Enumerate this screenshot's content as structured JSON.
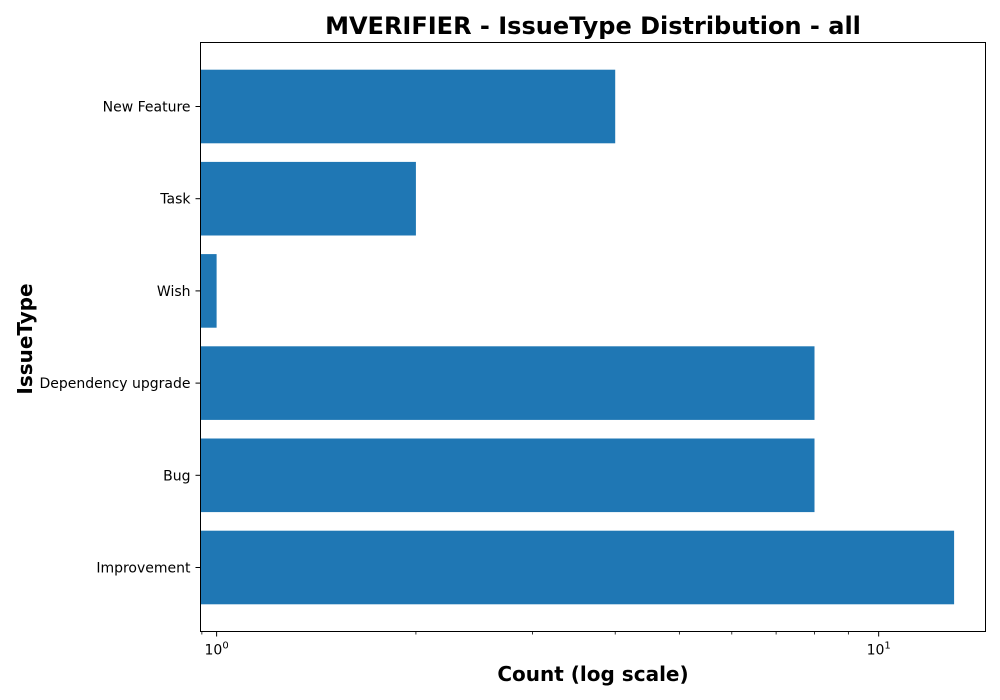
{
  "chart_data": {
    "type": "bar",
    "orientation": "horizontal",
    "title": "MVERIFIER - IssueType Distribution - all",
    "xlabel": "Count (log scale)",
    "ylabel": "IssueType",
    "x_scale": "log",
    "xlim": [
      0.9455,
      14.5
    ],
    "grid": false,
    "categories": [
      "New Feature",
      "Task",
      "Wish",
      "Dependency upgrade",
      "Bug",
      "Improvement"
    ],
    "values": [
      4,
      2,
      1,
      8,
      8,
      13
    ],
    "x_ticks": [
      {
        "base": "10",
        "exp": "0",
        "value": 1
      },
      {
        "base": "10",
        "exp": "1",
        "value": 10
      }
    ],
    "bar_color": "#1f77b4"
  }
}
